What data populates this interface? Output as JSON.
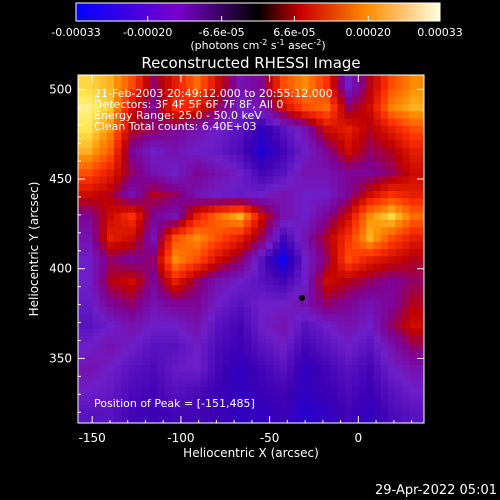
{
  "chart_data": {
    "type": "heatmap",
    "title": "Reconstructed RHESSI Image",
    "xlabel": "Heliocentric X (arcsec)",
    "ylabel": "Heliocentric Y (arcsec)",
    "xlim": [
      -158,
      37
    ],
    "ylim": [
      314,
      508
    ],
    "x_ticks": [
      -150,
      -100,
      -50,
      0
    ],
    "x_tick_labels": [
      "-150",
      "-100",
      "-50",
      "0"
    ],
    "y_ticks": [
      350,
      400,
      450,
      500
    ],
    "y_tick_labels": [
      "350",
      "400",
      "450",
      "500"
    ],
    "colorbar": {
      "range": [
        -0.00033,
        0.00033
      ],
      "ticks": [
        -0.00033,
        -0.0002,
        -6.6e-05,
        6.6e-05,
        0.0002,
        0.00033
      ],
      "tick_labels": [
        "-0.00033",
        "-0.00020",
        "-6.6e-05",
        "6.6e-05",
        "0.00020",
        "0.00033"
      ],
      "label_main": "(photons cm",
      "label_exp1": "-2",
      "label_mid": " s",
      "label_exp2": "-1",
      "label_end": " asec",
      "label_exp3": "-2",
      "label_close": ")"
    },
    "annotations": [
      "21-Feb-2003 20:49:12.000 to 20:55:12.000",
      "Detectors: 3F 4F 5F 6F 7F 8F, All 0",
      "Energy Range: 25.0 - 50.0 keV",
      "Clean     Total counts: 6.40E+03"
    ],
    "peak_label": "Position of Peak = [-151,485]",
    "grid": false,
    "colormap": [
      "#0000ff",
      "#4b0082",
      "#8a2be2",
      "#ff0000",
      "#ff8c00",
      "#ffff99",
      "#ffffff"
    ],
    "grid_cells": [
      16,
      16
    ],
    "intensity_grid": [
      [
        0.9,
        0.85,
        0.7,
        0.45,
        0.6,
        0.75,
        0.55,
        0.35,
        0.4,
        0.7,
        0.8,
        0.65,
        0.3,
        0.5,
        0.7,
        0.8
      ],
      [
        0.95,
        0.88,
        0.55,
        0.4,
        0.65,
        0.6,
        0.45,
        0.3,
        0.35,
        0.55,
        0.7,
        0.75,
        0.45,
        0.55,
        0.78,
        0.85
      ],
      [
        0.92,
        0.8,
        0.5,
        0.45,
        0.4,
        0.35,
        0.3,
        0.25,
        0.15,
        0.25,
        0.35,
        0.55,
        0.6,
        0.5,
        0.6,
        0.7
      ],
      [
        0.85,
        0.72,
        0.4,
        0.3,
        0.35,
        0.3,
        0.28,
        0.22,
        0.1,
        0.2,
        0.3,
        0.4,
        0.55,
        0.45,
        0.5,
        0.6
      ],
      [
        0.7,
        0.6,
        0.45,
        0.35,
        0.3,
        0.4,
        0.35,
        0.3,
        0.2,
        0.25,
        0.35,
        0.35,
        0.4,
        0.4,
        0.45,
        0.55
      ],
      [
        0.55,
        0.5,
        0.35,
        0.5,
        0.45,
        0.35,
        0.3,
        0.28,
        0.3,
        0.35,
        0.3,
        0.3,
        0.4,
        0.55,
        0.65,
        0.6
      ],
      [
        0.4,
        0.55,
        0.65,
        0.4,
        0.35,
        0.6,
        0.75,
        0.85,
        0.55,
        0.35,
        0.3,
        0.4,
        0.55,
        0.8,
        0.9,
        0.75
      ],
      [
        0.35,
        0.6,
        0.55,
        0.35,
        0.7,
        0.8,
        0.7,
        0.6,
        0.45,
        0.2,
        0.35,
        0.5,
        0.65,
        0.85,
        0.7,
        0.6
      ],
      [
        0.3,
        0.45,
        0.4,
        0.45,
        0.8,
        0.7,
        0.55,
        0.45,
        0.25,
        0.05,
        0.3,
        0.45,
        0.7,
        0.6,
        0.55,
        0.5
      ],
      [
        0.3,
        0.5,
        0.55,
        0.4,
        0.6,
        0.45,
        0.35,
        0.3,
        0.25,
        0.2,
        0.3,
        0.55,
        0.5,
        0.45,
        0.4,
        0.45
      ],
      [
        0.28,
        0.4,
        0.45,
        0.35,
        0.4,
        0.4,
        0.3,
        0.25,
        0.3,
        0.3,
        0.35,
        0.45,
        0.4,
        0.35,
        0.4,
        0.5
      ],
      [
        0.25,
        0.3,
        0.35,
        0.3,
        0.3,
        0.35,
        0.25,
        0.2,
        0.3,
        0.35,
        0.25,
        0.3,
        0.35,
        0.3,
        0.45,
        0.55
      ],
      [
        0.3,
        0.35,
        0.3,
        0.25,
        0.25,
        0.3,
        0.22,
        0.18,
        0.25,
        0.3,
        0.2,
        0.25,
        0.3,
        0.25,
        0.35,
        0.45
      ],
      [
        0.35,
        0.3,
        0.25,
        0.22,
        0.28,
        0.3,
        0.2,
        0.15,
        0.2,
        0.25,
        0.15,
        0.2,
        0.25,
        0.2,
        0.3,
        0.35
      ],
      [
        0.3,
        0.28,
        0.22,
        0.2,
        0.25,
        0.22,
        0.18,
        0.15,
        0.18,
        0.2,
        0.15,
        0.18,
        0.22,
        0.18,
        0.25,
        0.3
      ],
      [
        0.25,
        0.25,
        0.2,
        0.18,
        0.2,
        0.2,
        0.18,
        0.15,
        0.15,
        0.18,
        0.12,
        0.15,
        0.2,
        0.15,
        0.22,
        0.25
      ]
    ]
  },
  "footer": {
    "timestamp": "29-Apr-2022 05:01"
  }
}
